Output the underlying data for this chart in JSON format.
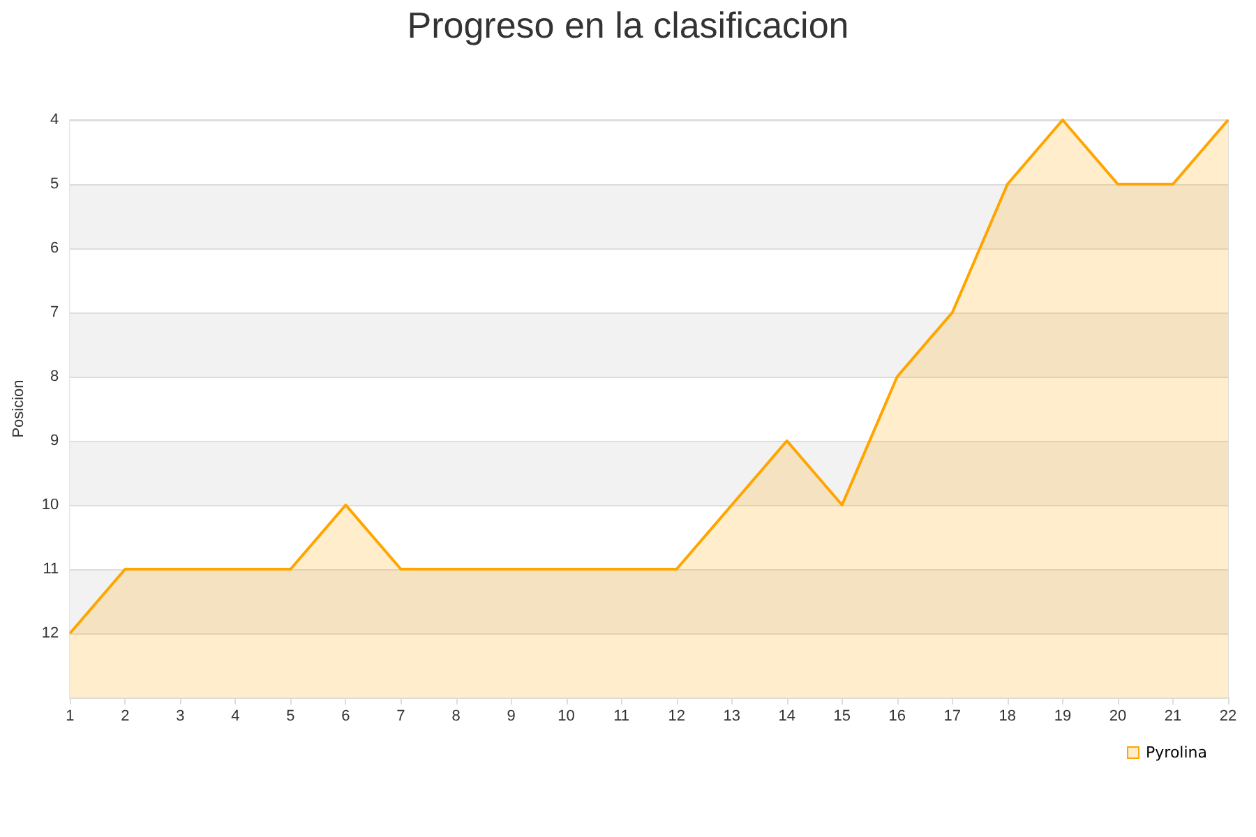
{
  "chart_data": {
    "type": "area",
    "title": "Progreso en la clasificacion",
    "ylabel": "Posicion",
    "x": [
      1,
      2,
      3,
      4,
      5,
      6,
      7,
      8,
      9,
      10,
      11,
      12,
      13,
      14,
      15,
      16,
      17,
      18,
      19,
      20,
      21,
      22
    ],
    "series": [
      {
        "name": "Pyrolina",
        "color": "#ffa500",
        "values": [
          12,
          11,
          11,
          11,
          11,
          10,
          11,
          11,
          11,
          11,
          11,
          11,
          10,
          9,
          10,
          8,
          7,
          5,
          4,
          5,
          5,
          4
        ]
      }
    ],
    "xlim": [
      1,
      22
    ],
    "xticks": [
      1,
      2,
      3,
      4,
      5,
      6,
      7,
      8,
      9,
      10,
      11,
      12,
      13,
      14,
      15,
      16,
      17,
      18,
      19,
      20,
      21,
      22
    ],
    "ylim": [
      13,
      4
    ],
    "yticks": [
      4,
      5,
      6,
      7,
      8,
      9,
      10,
      11,
      12,
      {
        "value": 13,
        "label": null
      }
    ],
    "grid": "y",
    "legend": "bottom right",
    "marker": "none",
    "line_style": "solid"
  }
}
